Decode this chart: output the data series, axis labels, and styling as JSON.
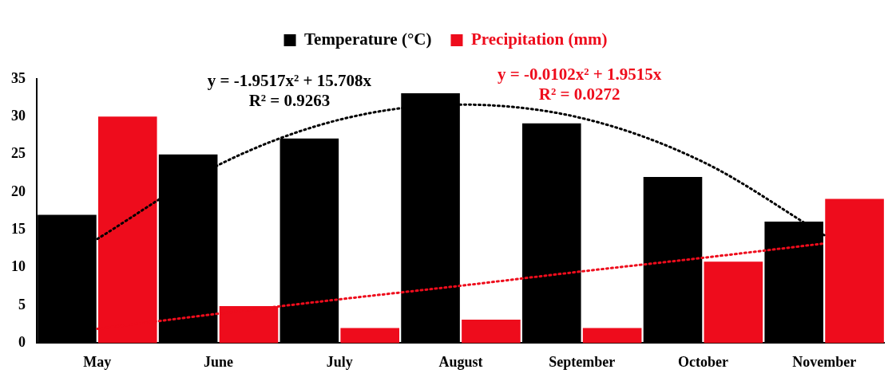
{
  "chart_data": {
    "type": "bar",
    "categories": [
      "May",
      "June",
      "July",
      "August",
      "September",
      "October",
      "November"
    ],
    "series": [
      {
        "name": "Temperature (°C)",
        "color": "#000000",
        "values": [
          17,
          25,
          27.1,
          33.1,
          29.1,
          22,
          16.1
        ]
      },
      {
        "name": "Precipitation (mm)",
        "color": "#ee0c1c",
        "values": [
          30,
          4.9,
          2,
          3.1,
          2,
          10.8,
          19.1
        ]
      },
      {
        "type": "line",
        "color": "#000000",
        "line_style": "dotted",
        "values": [
          13.8,
          23.6,
          29.6,
          31.6,
          29.8,
          24.0,
          14.3
        ]
      },
      {
        "type": "line",
        "color": "#ee0c1c",
        "line_style": "dotted",
        "values": [
          1.9,
          3.9,
          5.8,
          7.6,
          9.5,
          11.3,
          13.2
        ]
      }
    ],
    "annotations": [
      "y = -1.9517x² + 15.708x",
      "R² = 0.9263",
      "y = -0.0102x² + 1.9515x",
      "R² = 0.0272"
    ],
    "ylim": [
      0,
      35
    ],
    "yticks": [
      0,
      5,
      10,
      15,
      20,
      25,
      30,
      35
    ],
    "grid": false,
    "legend": "top",
    "marker": "none"
  }
}
